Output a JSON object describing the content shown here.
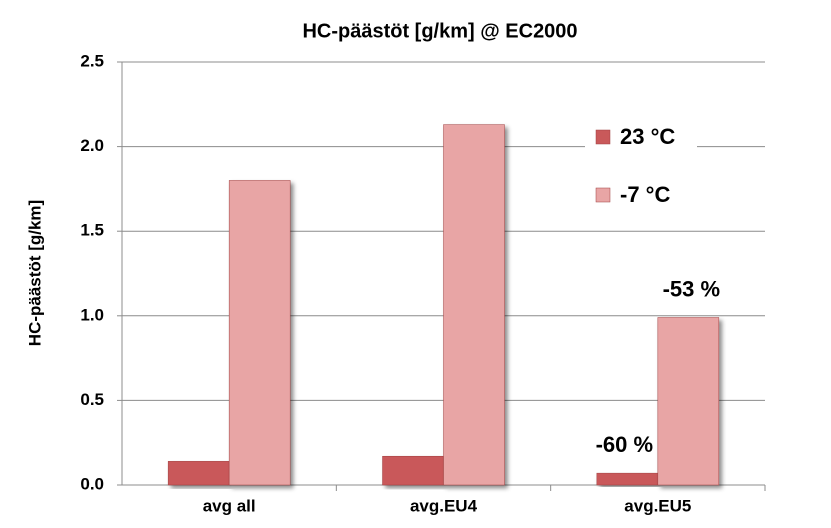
{
  "chart_data": {
    "type": "bar",
    "title": "HC-päästöt [g/km] @ EC2000",
    "y_label": "HC-päästöt [g/km]",
    "categories": [
      "avg all",
      "avg.EU4",
      "avg.EU5"
    ],
    "series": [
      {
        "name": "23 °C",
        "color": "#c9595a",
        "values": [
          0.14,
          0.17,
          0.07
        ]
      },
      {
        "name": "-7 °C",
        "color": "#e8a5a5",
        "values": [
          1.8,
          2.13,
          0.99
        ]
      }
    ],
    "ylim": [
      0,
      2.5
    ],
    "yticks": [
      {
        "value": 0,
        "label": "0.0"
      },
      0.5,
      {
        "value": 1,
        "label": "1.0"
      },
      1.5,
      {
        "value": 2,
        "label": "2.0"
      },
      2.5
    ],
    "grid": true,
    "legend": "upper right",
    "annotations": [
      "-60 %",
      "-53 %"
    ]
  }
}
